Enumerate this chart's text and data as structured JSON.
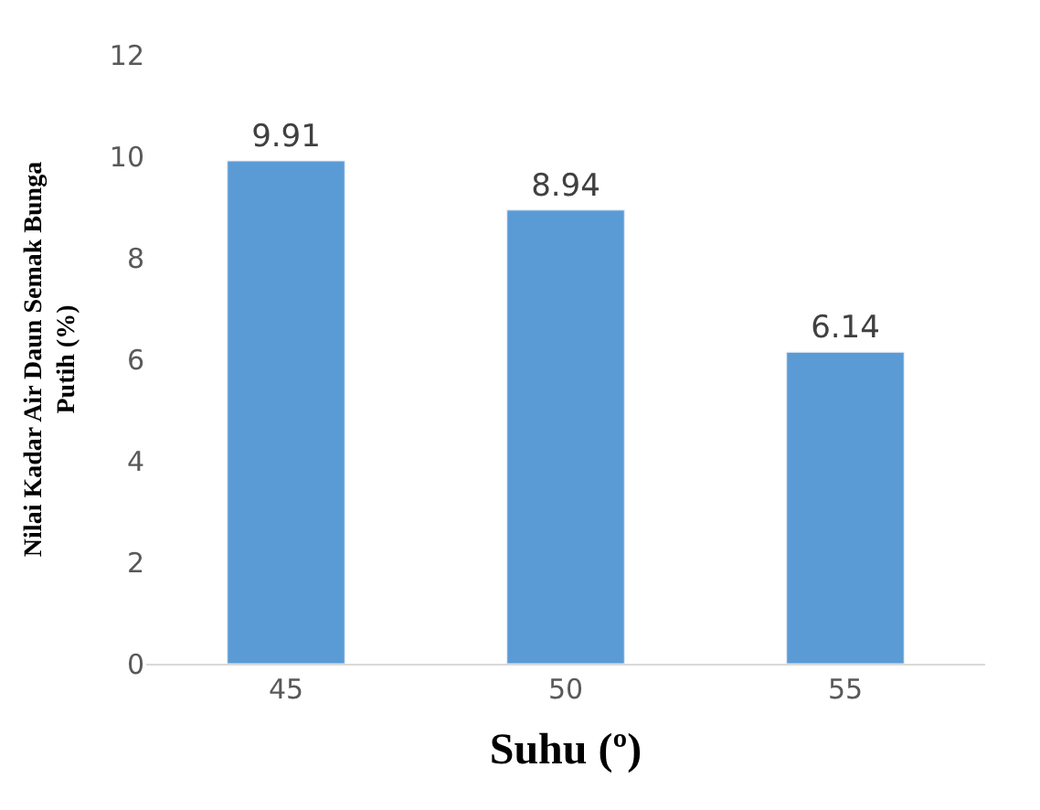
{
  "chart_data": {
    "type": "bar",
    "categories": [
      "45",
      "50",
      "55"
    ],
    "values": [
      9.91,
      8.94,
      6.14
    ],
    "color": "#5b9bd5",
    "xlabel": "Suhu (º)",
    "ylabel": "Nilai Kadar Air Daun Semak Bunga Putih (%)",
    "ylim": [
      0,
      12
    ],
    "yticks": [
      0,
      2,
      4,
      6,
      8,
      10,
      12
    ],
    "data_labels": true
  }
}
